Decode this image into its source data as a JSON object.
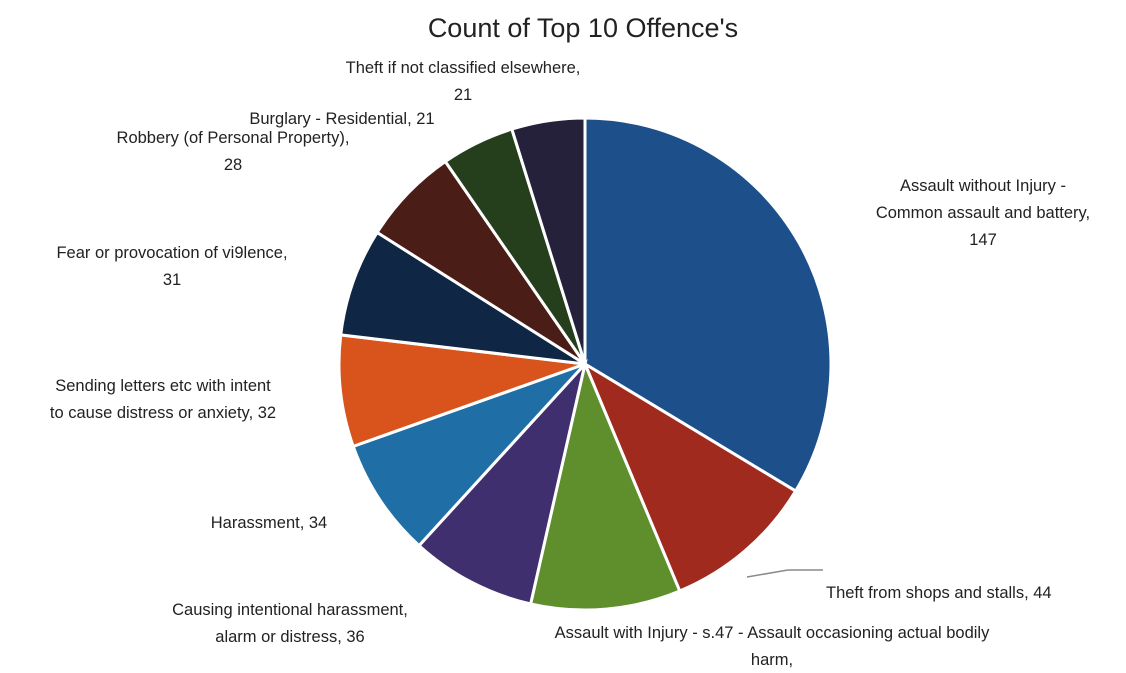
{
  "chart_data": {
    "type": "pie",
    "title": "Count of Top 10 Offence's",
    "legend": "none",
    "slices": [
      {
        "label": "Assault without Injury - Common assault and battery",
        "value": 147,
        "color": "#1d4f8a",
        "label_lines": [
          "Assault without Injury -",
          "Common assault and battery,",
          "147"
        ]
      },
      {
        "label": "Theft from shops and stalls",
        "value": 44,
        "color": "#a02a1e",
        "label_lines": [
          "Theft from shops and stalls, 44"
        ]
      },
      {
        "label": "Assault with Injury - s.47 - Assault occasioning actual bodily harm",
        "value": 43,
        "color": "#5e8f2c",
        "label_lines": [
          "Assault with Injury - s.47 - Assault occasioning actual bodily",
          "harm,"
        ]
      },
      {
        "label": "Causing intentional harassment, alarm or distress",
        "value": 36,
        "color": "#3f2f6e",
        "label_lines": [
          "Causing intentional harassment,",
          "alarm or distress, 36"
        ]
      },
      {
        "label": "Harassment",
        "value": 34,
        "color": "#1f6fa6",
        "label_lines": [
          "Harassment, 34"
        ]
      },
      {
        "label": "Sending letters etc with intent to cause distress or anxiety",
        "value": 32,
        "color": "#d9541d",
        "label_lines": [
          "Sending letters etc with intent",
          "to cause distress or anxiety, 32"
        ]
      },
      {
        "label": "Fear or provocation of vi9lence",
        "value": 31,
        "color": "#0f2644",
        "label_lines": [
          "Fear or provocation of vi9lence,",
          "31"
        ]
      },
      {
        "label": "Robbery (of Personal Property)",
        "value": 28,
        "color": "#4a1d17",
        "label_lines": [
          "Robbery (of Personal Property),",
          "28"
        ]
      },
      {
        "label": "Burglary - Residential",
        "value": 21,
        "color": "#253f1d",
        "label_lines": [
          "Burglary - Residential, 21"
        ]
      },
      {
        "label": "Theft if not classified elsewhere",
        "value": 21,
        "color": "#25213a",
        "label_lines": [
          "Theft if not classified elsewhere,",
          "21"
        ]
      }
    ]
  }
}
